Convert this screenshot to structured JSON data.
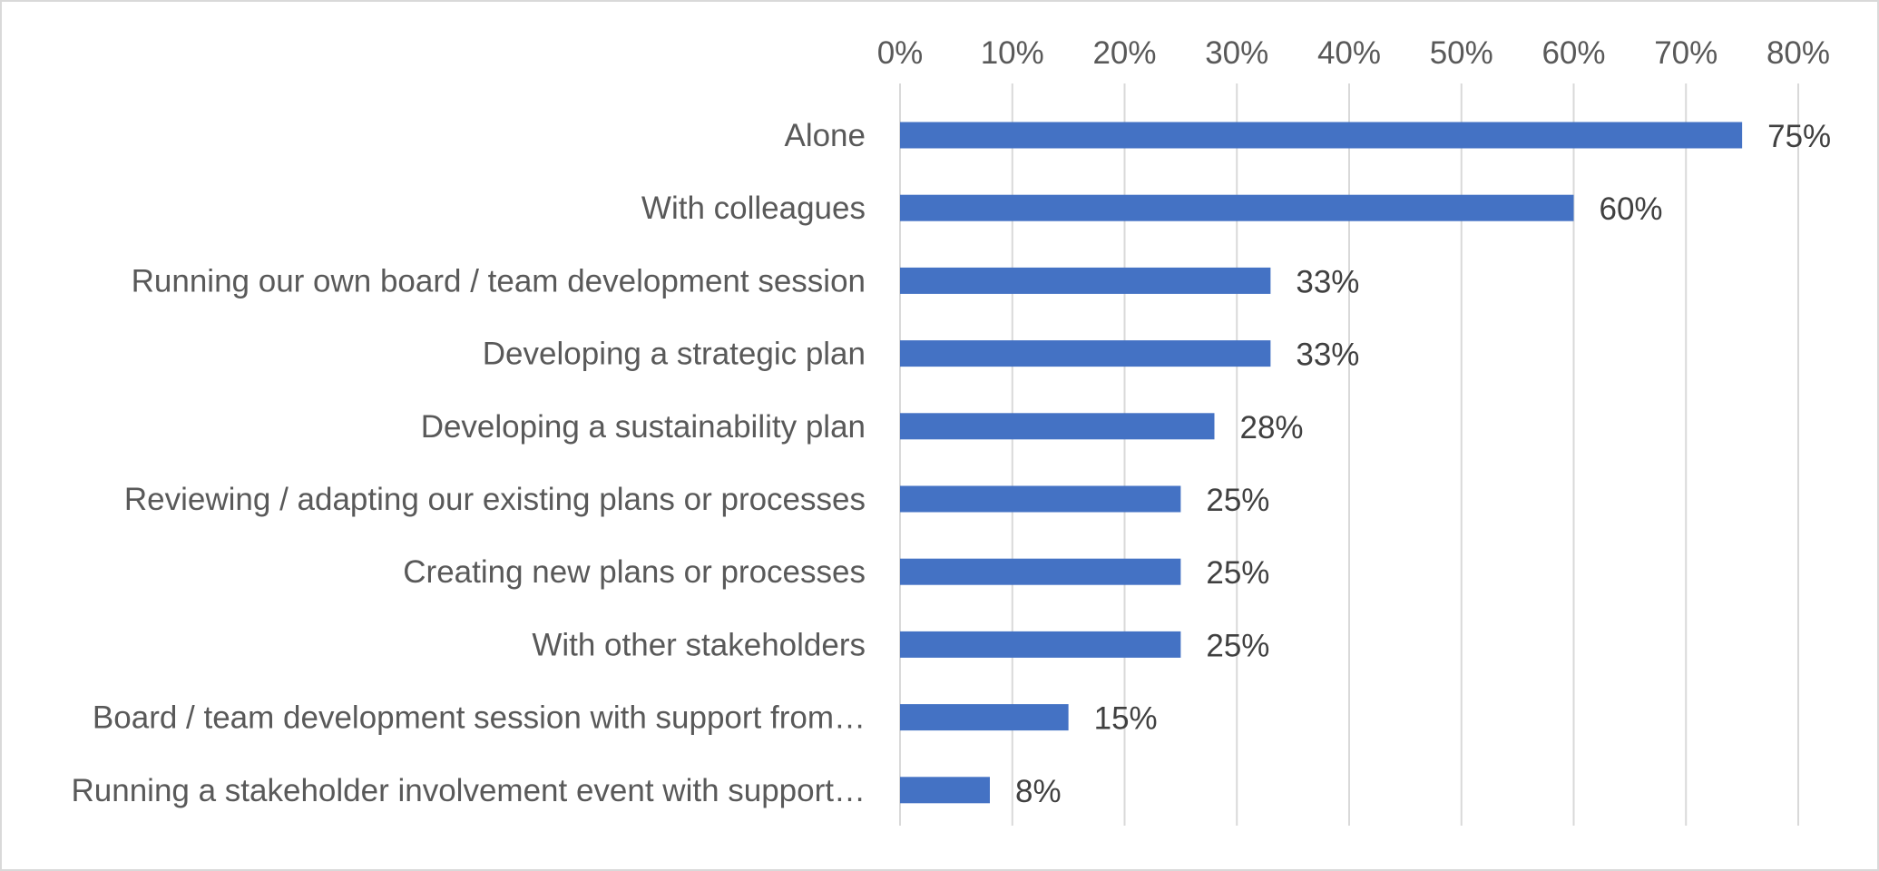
{
  "chart_data": {
    "type": "bar",
    "orientation": "horizontal",
    "title": "",
    "xlabel": "",
    "ylabel": "",
    "categories": [
      "Alone",
      "With colleagues",
      "Running our own board / team development session",
      "Developing a strategic plan",
      "Developing a sustainability plan",
      "Reviewing / adapting our existing plans or processes",
      "Creating new plans or processes",
      "With other stakeholders",
      "Board / team development session with support from…",
      "Running a stakeholder involvement event with support…"
    ],
    "values": [
      75,
      60,
      33,
      33,
      28,
      25,
      25,
      25,
      15,
      8
    ],
    "value_labels": [
      "75%",
      "60%",
      "33%",
      "33%",
      "28%",
      "25%",
      "25%",
      "25%",
      "15%",
      "8%"
    ],
    "xlim": [
      0,
      80
    ],
    "x_ticks": [
      0,
      10,
      20,
      30,
      40,
      50,
      60,
      70,
      80
    ],
    "x_tick_labels": [
      "0%",
      "10%",
      "20%",
      "30%",
      "40%",
      "50%",
      "60%",
      "70%",
      "80%"
    ],
    "x_axis_position": "top",
    "grid": true,
    "legend": "none",
    "bar_color": "#4472c4",
    "grid_color": "#d9d9d9",
    "label_color": "#595959",
    "data_label_color": "#404040"
  }
}
